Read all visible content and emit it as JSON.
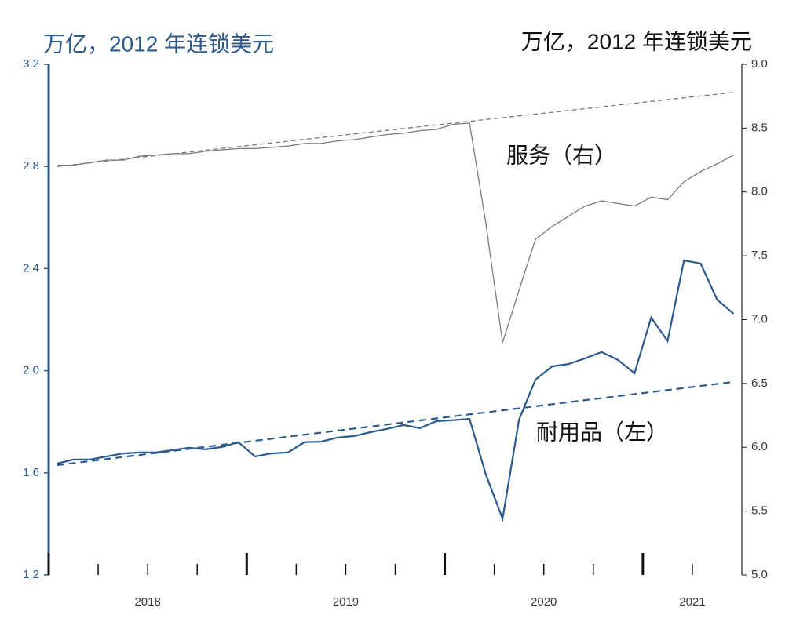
{
  "chart_data": {
    "type": "line",
    "y_label": "万亿，2012 年连锁美元",
    "y2_label": "万亿，2012 年连锁美元",
    "xlim": [
      2018,
      2021.5
    ],
    "xticks": [
      2018,
      2019,
      2020,
      2021
    ],
    "ylim": [
      1.2,
      3.2
    ],
    "yticks": [
      {
        "value": 1.2,
        "label": "1.2"
      },
      {
        "value": 1.6,
        "label": "1.6"
      },
      {
        "value": 2,
        "label": "2.0"
      },
      {
        "value": 2.4,
        "label": "2.4"
      },
      {
        "value": 2.8,
        "label": "2.8"
      },
      {
        "value": 3.2,
        "label": "3.2"
      }
    ],
    "y2lim": [
      5,
      9
    ],
    "y2ticks": [
      {
        "value": 5,
        "label": "5.0"
      },
      5.5,
      {
        "value": 6,
        "label": "6.0"
      },
      6.5,
      {
        "value": 7,
        "label": "7.0"
      },
      7.5,
      {
        "value": 8,
        "label": "8.0"
      },
      8.5,
      {
        "value": 9,
        "label": "9.0"
      }
    ],
    "x": [
      2018.042,
      2018.125,
      2018.208,
      2018.292,
      2018.375,
      2018.458,
      2018.542,
      2018.625,
      2018.708,
      2018.792,
      2018.875,
      2018.958,
      2019.042,
      2019.125,
      2019.208,
      2019.292,
      2019.375,
      2019.458,
      2019.542,
      2019.625,
      2019.708,
      2019.792,
      2019.875,
      2019.958,
      2020.042,
      2020.125,
      2020.208,
      2020.292,
      2020.375,
      2020.458,
      2020.542,
      2020.625,
      2020.708,
      2020.792,
      2020.875,
      2020.958,
      2021.042,
      2021.125,
      2021.208,
      2021.292,
      2021.375,
      2021.458
    ],
    "series": [
      {
        "name": "服务（右）",
        "color": "#7a7a7a",
        "axis": "y2",
        "values": [
          8.21,
          8.21,
          8.23,
          8.25,
          8.25,
          8.28,
          8.29,
          8.3,
          8.3,
          8.32,
          8.33,
          8.34,
          8.34,
          8.35,
          8.36,
          8.38,
          8.38,
          8.4,
          8.41,
          8.43,
          8.45,
          8.46,
          8.48,
          8.49,
          8.53,
          8.54,
          7.75,
          6.82,
          7.23,
          7.63,
          7.73,
          7.81,
          7.89,
          7.93,
          7.91,
          7.89,
          7.96,
          7.94,
          8.08,
          8.16,
          8.22,
          8.29
        ]
      },
      {
        "name": "耐用品（左）",
        "color": "#2c5a8c",
        "axis": "y",
        "values": [
          1.636,
          1.652,
          1.652,
          1.664,
          1.676,
          1.68,
          1.68,
          1.689,
          1.698,
          1.692,
          1.701,
          1.72,
          1.664,
          1.676,
          1.68,
          1.72,
          1.722,
          1.738,
          1.744,
          1.759,
          1.772,
          1.787,
          1.775,
          1.802,
          1.806,
          1.811,
          1.593,
          1.42,
          1.808,
          1.965,
          2.017,
          2.026,
          2.048,
          2.073,
          2.042,
          1.99,
          2.208,
          2.116,
          2.432,
          2.42,
          2.278,
          2.223
        ]
      },
      {
        "color": "#7a7a7a",
        "axis": "y2",
        "dashed": true,
        "x": [
          2018.042,
          2021.458
        ],
        "values": [
          8.2,
          8.78
        ]
      },
      {
        "color": "#2c5a8c",
        "axis": "y",
        "dashed": true,
        "x": [
          2018.042,
          2021.458
        ],
        "values": [
          1.63,
          1.956
        ]
      }
    ]
  }
}
